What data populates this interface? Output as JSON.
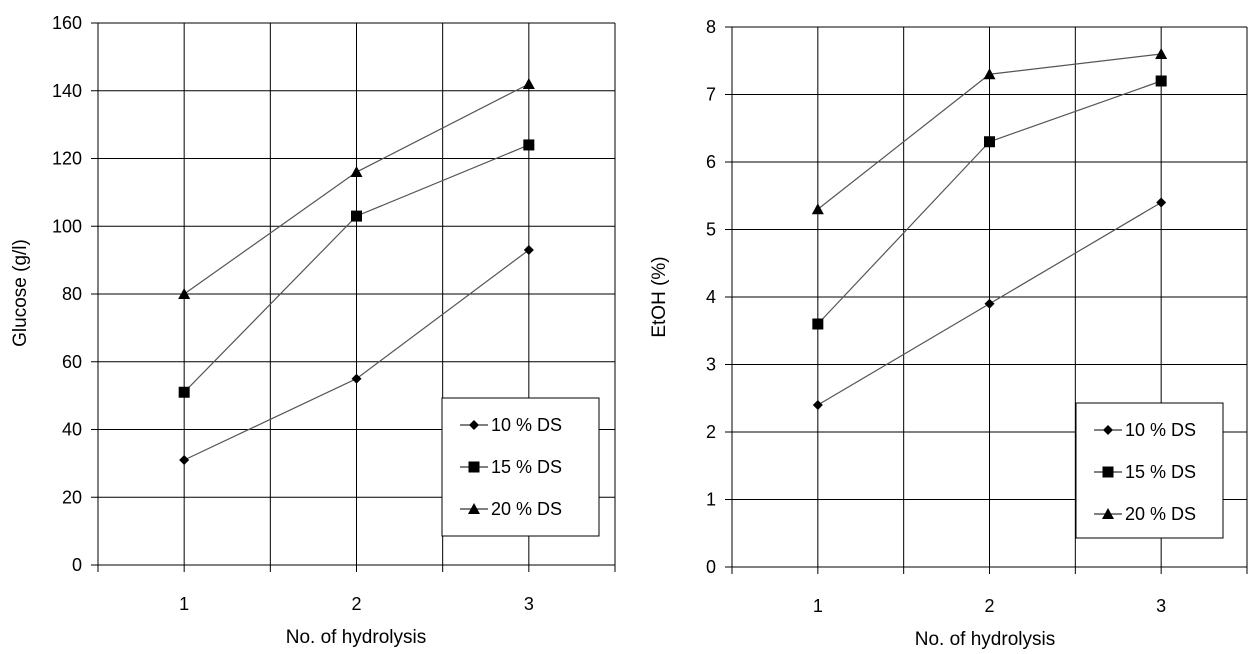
{
  "chart_data": [
    {
      "type": "line",
      "title": "",
      "xlabel": "No. of hydrolysis",
      "ylabel": "Glucose (g/l)",
      "categories": [
        "1",
        "2",
        "3"
      ],
      "x": [
        1,
        2,
        3
      ],
      "xlim": [
        0.5,
        3.5
      ],
      "ylim": [
        0,
        160
      ],
      "yticks": [
        0,
        20,
        40,
        60,
        80,
        100,
        120,
        140,
        160
      ],
      "grid": true,
      "legend_position": "bottom-right",
      "series": [
        {
          "name": "10 % DS",
          "marker": "diamond",
          "values": [
            31,
            55,
            93
          ]
        },
        {
          "name": "15 % DS",
          "marker": "square",
          "values": [
            51,
            103,
            124
          ]
        },
        {
          "name": "20 % DS",
          "marker": "triangle",
          "values": [
            80,
            116,
            142
          ]
        }
      ]
    },
    {
      "type": "line",
      "title": "",
      "xlabel": "No. of hydrolysis",
      "ylabel": "EtOH (%)",
      "categories": [
        "1",
        "2",
        "3"
      ],
      "x": [
        1,
        2,
        3
      ],
      "xlim": [
        0.5,
        3.5
      ],
      "ylim": [
        0,
        8
      ],
      "yticks": [
        0,
        1,
        2,
        3,
        4,
        5,
        6,
        7,
        8
      ],
      "grid": true,
      "legend_position": "bottom-right",
      "series": [
        {
          "name": "10 % DS",
          "marker": "diamond",
          "values": [
            2.4,
            3.9,
            5.4
          ]
        },
        {
          "name": "15 % DS",
          "marker": "square",
          "values": [
            3.6,
            6.3,
            7.2
          ]
        },
        {
          "name": "20 % DS",
          "marker": "triangle",
          "values": [
            5.3,
            7.3,
            7.6
          ]
        }
      ]
    }
  ]
}
